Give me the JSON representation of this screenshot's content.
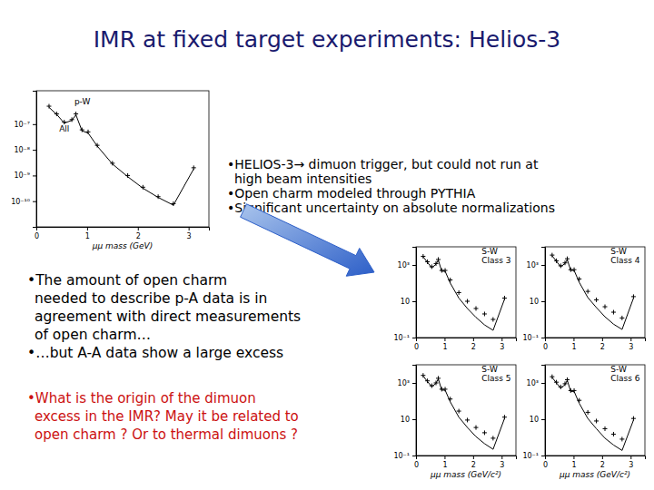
{
  "slide": {
    "title": "IMR at fixed target experiments: Helios-3",
    "top_bullets": [
      [
        "•HELIOS-3→ dimuon trigger, but could not run at",
        "high beam intensities"
      ],
      [
        "•Open charm modeled through PYTHIA"
      ],
      [
        "•Significant uncertainty on absolute normalizations"
      ]
    ],
    "middle_bullets": [
      [
        "•The amount of open charm",
        "needed to describe p-A data is in",
        "agreement with direct measurements",
        "of open charm…"
      ],
      [
        "•…but A-A data show a large excess"
      ]
    ],
    "question": [
      "•What is the origin of the dimuon",
      "excess in the IMR? May it be related to",
      "open charm ? Or to thermal dimuons ?"
    ]
  },
  "chart_data": [
    {
      "type": "line",
      "log": "y",
      "xlim": [
        0,
        3.4
      ],
      "xticks": [
        0,
        1,
        2,
        3
      ],
      "ylim": [
        1e-11,
        2e-06
      ],
      "yticks": [
        {
          "value": 1e-07,
          "label": "10⁻⁷"
        },
        {
          "value": 1e-08,
          "label": "10⁻⁸"
        },
        {
          "value": 1e-09,
          "label": "10⁻⁹"
        },
        {
          "value": 1e-10,
          "label": "10⁻¹⁰"
        }
      ],
      "x_label": "μμ mass (GeV)",
      "annotations": [
        {
          "text": "p-W",
          "x": 0.75,
          "y": 6e-07
        },
        {
          "text": "All",
          "x": 0.45,
          "y": 5e-08
        }
      ],
      "x": [
        0.25,
        0.4,
        0.55,
        0.7,
        0.78,
        0.9,
        1.02,
        1.2,
        1.5,
        1.8,
        2.1,
        2.4,
        2.7,
        3.1
      ],
      "series": [
        {
          "type": "scatter",
          "marker": "plus",
          "color": "#000000",
          "values": [
            5e-07,
            2.5e-07,
            1.2e-07,
            1.5e-07,
            2.5e-07,
            6e-08,
            5e-08,
            1.5e-08,
            3e-09,
            1e-09,
            3.5e-10,
            1.5e-10,
            8e-11,
            2e-09
          ]
        },
        {
          "type": "line",
          "line_style": "solid",
          "color": "#000000",
          "values": [
            4.5e-07,
            2.4e-07,
            1.1e-07,
            1.4e-07,
            2.3e-07,
            5.5e-08,
            4.5e-08,
            1.4e-08,
            2.8e-09,
            9e-10,
            3.2e-10,
            1.4e-10,
            7e-11,
            1.8e-09
          ]
        }
      ]
    },
    {
      "type": "line",
      "log": "y",
      "xlim": [
        0,
        3.5
      ],
      "xticks": [
        0,
        1,
        2,
        3
      ],
      "ylim": [
        0.1,
        10000
      ],
      "yticks": [
        {
          "value": 1000,
          "label": "10³"
        },
        {
          "value": 10,
          "label": "10"
        },
        {
          "value": 0.1,
          "label": "10⁻¹"
        }
      ],
      "annotations": [
        {
          "text": "S-W",
          "x": 2.3,
          "y": 4000
        },
        {
          "text": "Class 3",
          "x": 2.3,
          "y": 1200
        }
      ],
      "x": [
        0.25,
        0.4,
        0.55,
        0.7,
        0.78,
        0.9,
        1.02,
        1.2,
        1.5,
        1.8,
        2.1,
        2.4,
        2.7,
        3.1
      ],
      "series": [
        {
          "type": "scatter",
          "marker": "plus",
          "color": "#000000",
          "values": [
            3000,
            1500,
            800,
            1200,
            2000,
            500,
            500,
            150,
            30,
            10,
            4,
            2,
            1,
            15
          ]
        },
        {
          "type": "line",
          "line_style": "solid",
          "color": "#000000",
          "values": [
            2800,
            1400,
            700,
            1100,
            1900,
            450,
            450,
            100,
            15,
            4,
            1.3,
            0.5,
            0.25,
            13
          ]
        }
      ]
    },
    {
      "type": "line",
      "log": "y",
      "xlim": [
        0,
        3.5
      ],
      "xticks": [
        0,
        1,
        2,
        3
      ],
      "ylim": [
        0.1,
        10000
      ],
      "yticks": [
        {
          "value": 1000,
          "label": "10³"
        },
        {
          "value": 10,
          "label": "10"
        },
        {
          "value": 0.1,
          "label": "10⁻¹"
        }
      ],
      "annotations": [
        {
          "text": "S-W",
          "x": 2.3,
          "y": 4000
        },
        {
          "text": "Class 4",
          "x": 2.3,
          "y": 1200
        }
      ],
      "x": [
        0.25,
        0.4,
        0.55,
        0.7,
        0.78,
        0.9,
        1.02,
        1.2,
        1.5,
        1.8,
        2.1,
        2.4,
        2.7,
        3.1
      ],
      "series": [
        {
          "type": "scatter",
          "marker": "plus",
          "color": "#000000",
          "values": [
            3500,
            1700,
            900,
            1300,
            2200,
            550,
            550,
            170,
            35,
            12,
            5,
            2.5,
            1.2,
            18
          ]
        },
        {
          "type": "line",
          "line_style": "solid",
          "color": "#000000",
          "values": [
            3200,
            1600,
            800,
            1200,
            2000,
            500,
            500,
            110,
            16,
            4.5,
            1.4,
            0.55,
            0.28,
            15
          ]
        }
      ]
    },
    {
      "type": "line",
      "log": "y",
      "xlim": [
        0,
        3.5
      ],
      "xticks": [
        0,
        1,
        2,
        3
      ],
      "ylim": [
        0.1,
        10000
      ],
      "yticks": [
        {
          "value": 1000,
          "label": "10³"
        },
        {
          "value": 10,
          "label": "10"
        },
        {
          "value": 0.1,
          "label": "10⁻¹"
        }
      ],
      "x_label": "μμ mass (GeV/c²)",
      "annotations": [
        {
          "text": "S-W",
          "x": 2.3,
          "y": 4000
        },
        {
          "text": "Class 5",
          "x": 2.3,
          "y": 1200
        }
      ],
      "x": [
        0.25,
        0.4,
        0.55,
        0.7,
        0.78,
        0.9,
        1.02,
        1.2,
        1.5,
        1.8,
        2.1,
        2.4,
        2.7,
        3.1
      ],
      "series": [
        {
          "type": "scatter",
          "marker": "plus",
          "color": "#000000",
          "values": [
            2600,
            1300,
            700,
            1000,
            1800,
            450,
            450,
            130,
            28,
            9,
            3.5,
            1.8,
            0.9,
            13
          ]
        },
        {
          "type": "line",
          "line_style": "solid",
          "color": "#000000",
          "values": [
            2400,
            1200,
            620,
            950,
            1700,
            400,
            400,
            90,
            13,
            3.5,
            1.1,
            0.45,
            0.22,
            11
          ]
        }
      ]
    },
    {
      "type": "line",
      "log": "y",
      "xlim": [
        0,
        3.5
      ],
      "xticks": [
        0,
        1,
        2,
        3
      ],
      "ylim": [
        0.1,
        10000
      ],
      "yticks": [
        {
          "value": 1000,
          "label": "10³"
        },
        {
          "value": 10,
          "label": "10"
        },
        {
          "value": 0.1,
          "label": "10⁻¹"
        }
      ],
      "x_label": "μμ mass (GeV/c²)",
      "annotations": [
        {
          "text": "S-W",
          "x": 2.3,
          "y": 4000
        },
        {
          "text": "Class 6",
          "x": 2.3,
          "y": 1200
        }
      ],
      "x": [
        0.25,
        0.4,
        0.55,
        0.7,
        0.78,
        0.9,
        1.02,
        1.2,
        1.5,
        1.8,
        2.1,
        2.4,
        2.7,
        3.1
      ],
      "series": [
        {
          "type": "scatter",
          "marker": "plus",
          "color": "#000000",
          "values": [
            2200,
            1100,
            600,
            900,
            1500,
            380,
            380,
            110,
            24,
            8,
            3,
            1.5,
            0.8,
            11
          ]
        },
        {
          "type": "line",
          "line_style": "solid",
          "color": "#000000",
          "values": [
            2000,
            1000,
            520,
            800,
            1400,
            340,
            340,
            75,
            11,
            3,
            0.9,
            0.38,
            0.19,
            9
          ]
        }
      ]
    }
  ]
}
